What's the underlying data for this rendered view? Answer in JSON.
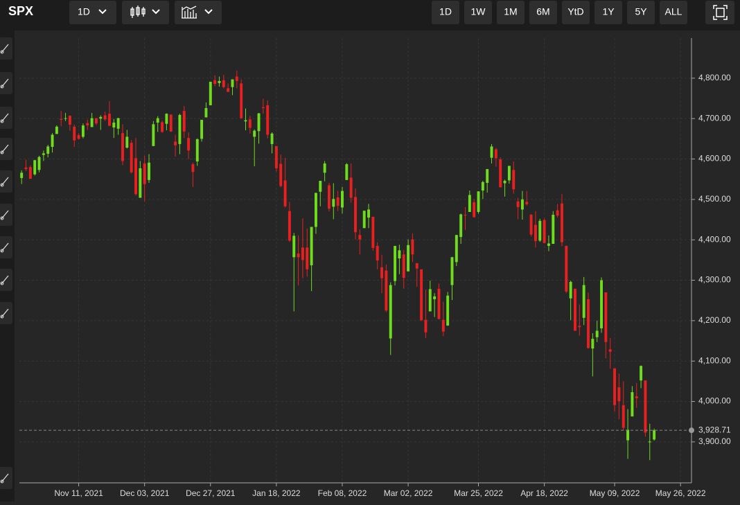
{
  "toolbar": {
    "symbol": "SPX",
    "interval": "1D",
    "ranges": [
      "1D",
      "1W",
      "1M",
      "6M",
      "YtD",
      "1Y",
      "5Y",
      "ALL"
    ]
  },
  "chart_data": {
    "type": "candlestick",
    "up_color": "#6fdc1e",
    "down_color": "#e8201f",
    "open": [
      4553,
      4579,
      4580,
      4562,
      4573,
      4610,
      4613,
      4630,
      4662,
      4699,
      4701,
      4707,
      4680,
      4659,
      4655,
      4689,
      4679,
      4701,
      4700,
      4708,
      4712,
      4678,
      4675,
      4664,
      4628,
      4640,
      4602,
      4504,
      4589,
      4548,
      4632,
      4690,
      4691,
      4687,
      4710,
      4643,
      4637,
      4719,
      4652,
      4587,
      4594,
      4650,
      4703,
      4733,
      4795,
      4788,
      4795,
      4775,
      4778,
      4804,
      4787,
      4693,
      4698,
      4655,
      4669,
      4728,
      4733,
      4637,
      4632,
      4588,
      4547,
      4471,
      4357,
      4366,
      4381,
      4381,
      4337,
      4432,
      4519,
      4566,
      4535,
      4482,
      4505,
      4480,
      4548,
      4554,
      4506,
      4412,
      4429,
      4455,
      4457,
      4385,
      4332,
      4324,
      4156,
      4298,
      4354,
      4364,
      4322,
      4401,
      4342,
      4327,
      4202,
      4223,
      4253,
      4279,
      4202,
      4188,
      4288,
      4345,
      4407,
      4462,
      4469,
      4493,
      4469,
      4522,
      4541,
      4603,
      4624,
      4599,
      4540,
      4547,
      4573,
      4495,
      4475,
      4494,
      4462,
      4437,
      4398,
      4449,
      4385,
      4390,
      4473,
      4490,
      4385,
      4255,
      4279,
      4187,
      4207,
      4253,
      4131,
      4159,
      4181,
      4270,
      4129,
      4082,
      4035,
      3991,
      3904,
      3963,
      4013,
      4052,
      4052,
      3899,
      3906
    ],
    "high": [
      4572,
      4598,
      4584,
      4598,
      4608,
      4621,
      4635,
      4664,
      4683,
      4719,
      4714,
      4708,
      4685,
      4664,
      4688,
      4697,
      4714,
      4701,
      4708,
      4717,
      4743,
      4699,
      4702,
      4686,
      4672,
      4647,
      4652,
      4595,
      4608,
      4612,
      4694,
      4706,
      4695,
      4713,
      4710,
      4660,
      4712,
      4731,
      4666,
      4591,
      4651,
      4697,
      4740,
      4791,
      4807,
      4804,
      4808,
      4787,
      4797,
      4819,
      4797,
      4725,
      4707,
      4673,
      4714,
      4749,
      4745,
      4666,
      4632,
      4611,
      4603,
      4494,
      4417,
      4411,
      4453,
      4428,
      4432,
      4517,
      4546,
      4595,
      4541,
      4540,
      4521,
      4531,
      4590,
      4589,
      4527,
      4426,
      4472,
      4489,
      4457,
      4394,
      4363,
      4339,
      4295,
      4385,
      4388,
      4375,
      4401,
      4416,
      4343,
      4327,
      4277,
      4299,
      4268,
      4292,
      4247,
      4271,
      4358,
      4412,
      4465,
      4481,
      4522,
      4501,
      4520,
      4546,
      4575,
      4637,
      4627,
      4604,
      4549,
      4583,
      4594,
      4504,
      4521,
      4521,
      4464,
      4471,
      4452,
      4453,
      4411,
      4471,
      4489,
      4513,
      4386,
      4299,
      4279,
      4240,
      4308,
      4270,
      4169,
      4200,
      4307,
      4270,
      4157,
      4082,
      4069,
      4050,
      3981,
      4038,
      4046,
      4089,
      4052,
      3945,
      3933
    ],
    "low": [
      4538,
      4570,
      4551,
      4559,
      4567,
      4595,
      4604,
      4616,
      4662,
      4681,
      4694,
      4670,
      4630,
      4648,
      4651,
      4672,
      4679,
      4684,
      4672,
      4694,
      4682,
      4652,
      4660,
      4585,
      4626,
      4564,
      4510,
      4504,
      4495,
      4541,
      4632,
      4667,
      4665,
      4671,
      4667,
      4606,
      4612,
      4652,
      4600,
      4531,
      4583,
      4643,
      4703,
      4733,
      4780,
      4779,
      4775,
      4766,
      4758,
      4775,
      4700,
      4671,
      4663,
      4582,
      4638,
      4712,
      4651,
      4614,
      4569,
      4530,
      4480,
      4395,
      4223,
      4287,
      4305,
      4309,
      4273,
      4415,
      4483,
      4545,
      4470,
      4451,
      4471,
      4465,
      4548,
      4492,
      4401,
      4364,
      4429,
      4429,
      4373,
      4327,
      4268,
      4221,
      4115,
      4287,
      4315,
      4279,
      4322,
      4345,
      4284,
      4199,
      4157,
      4223,
      4209,
      4203,
      4162,
      4187,
      4251,
      4335,
      4390,
      4424,
      4469,
      4455,
      4465,
      4501,
      4517,
      4589,
      4581,
      4530,
      4507,
      4539,
      4514,
      4451,
      4450,
      4485,
      4408,
      4381,
      4395,
      4392,
      4372,
      4390,
      4455,
      4384,
      4268,
      4201,
      4175,
      4163,
      4189,
      4131,
      4062,
      4147,
      4170,
      4107,
      4081,
      3975,
      3956,
      3928,
      3858,
      3963,
      3984,
      4033,
      3913,
      3855,
      3903
    ],
    "close": [
      4566,
      4575,
      4551,
      4597,
      4605,
      4614,
      4631,
      4660,
      4680,
      4697,
      4701,
      4685,
      4646,
      4650,
      4683,
      4683,
      4701,
      4688,
      4704,
      4698,
      4682,
      4690,
      4701,
      4595,
      4655,
      4567,
      4513,
      4577,
      4538,
      4591,
      4686,
      4701,
      4667,
      4712,
      4668,
      4634,
      4709,
      4668,
      4621,
      4568,
      4649,
      4697,
      4726,
      4791,
      4786,
      4793,
      4778,
      4766,
      4797,
      4793,
      4701,
      4696,
      4677,
      4670,
      4713,
      4726,
      4660,
      4663,
      4577,
      4533,
      4483,
      4398,
      4410,
      4357,
      4350,
      4327,
      4432,
      4516,
      4546,
      4589,
      4477,
      4501,
      4484,
      4521,
      4587,
      4504,
      4419,
      4401,
      4472,
      4475,
      4380,
      4349,
      4305,
      4225,
      4288,
      4385,
      4374,
      4306,
      4387,
      4364,
      4329,
      4201,
      4171,
      4278,
      4260,
      4204,
      4173,
      4262,
      4357,
      4412,
      4463,
      4461,
      4511,
      4456,
      4520,
      4543,
      4575,
      4631,
      4602,
      4530,
      4546,
      4583,
      4525,
      4481,
      4500,
      4488,
      4413,
      4397,
      4447,
      4392,
      4391,
      4462,
      4460,
      4394,
      4272,
      4296,
      4175,
      4184,
      4288,
      4132,
      4155,
      4175,
      4300,
      4147,
      4123,
      3991,
      4001,
      3935,
      3930,
      4023,
      4008,
      4088,
      3923,
      3901,
      3928.71
    ],
    "last_price": {
      "value": 3928.71,
      "label": "3,928.71"
    },
    "xlim": [
      -0.5,
      152.5
    ],
    "xticks": [
      {
        "value": 13,
        "label": "Nov 11, 2021"
      },
      {
        "value": 28,
        "label": "Dec 03, 2021"
      },
      {
        "value": 43,
        "label": "Dec 27, 2021"
      },
      {
        "value": 58,
        "label": "Jan 18, 2022"
      },
      {
        "value": 73,
        "label": "Feb 08, 2022"
      },
      {
        "value": 88,
        "label": "Mar 02, 2022"
      },
      {
        "value": 104,
        "label": "Mar 25, 2022"
      },
      {
        "value": 119,
        "label": "Apr 18, 2022"
      },
      {
        "value": 135,
        "label": "May 09, 2022"
      },
      {
        "value": 150,
        "label": "May 26, 2022"
      }
    ],
    "ylim": [
      3797,
      4918
    ],
    "yticks": [
      {
        "value": 3900,
        "label": "3,900.00"
      },
      {
        "value": 4000,
        "label": "4,000.00"
      },
      {
        "value": 4100,
        "label": "4,100.00"
      },
      {
        "value": 4200,
        "label": "4,200.00"
      },
      {
        "value": 4300,
        "label": "4,300.00"
      },
      {
        "value": 4400,
        "label": "4,400.00"
      },
      {
        "value": 4500,
        "label": "4,500.00"
      },
      {
        "value": 4600,
        "label": "4,600.00"
      },
      {
        "value": 4700,
        "label": "4,700.00"
      },
      {
        "value": 4800,
        "label": "4,800.00"
      }
    ],
    "grid": true
  }
}
